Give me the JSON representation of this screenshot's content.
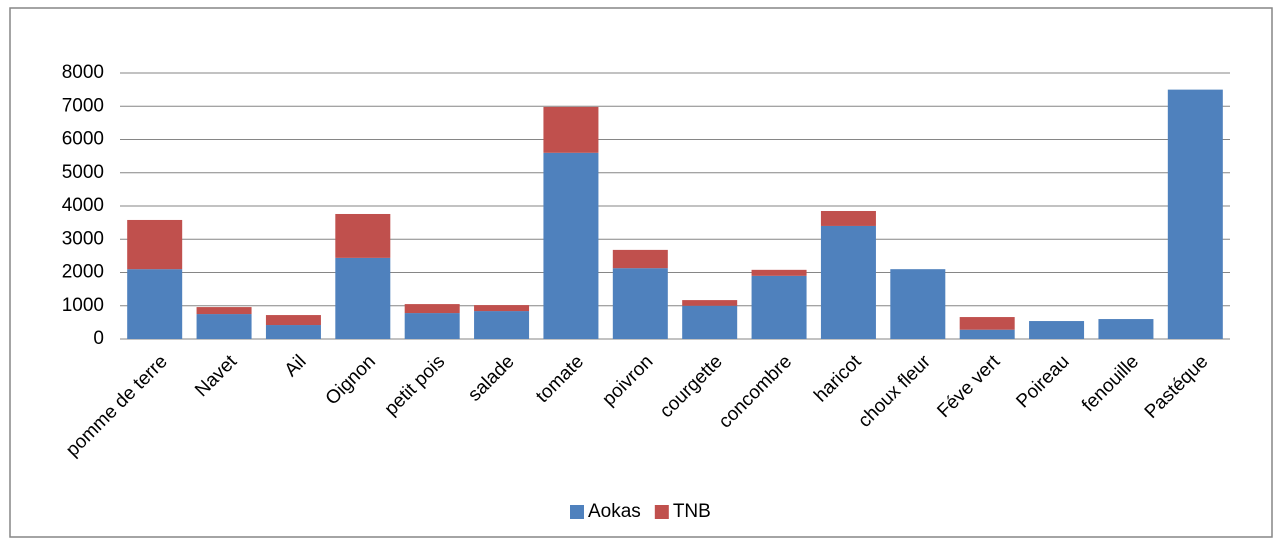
{
  "chart_data": {
    "type": "stacked_bar",
    "categories": [
      "pomme de terre",
      "Navet",
      "Ail",
      "Oignon",
      "petit pois",
      "salade",
      "tomate",
      "poivron",
      "courgette",
      "concombre",
      "haricot",
      "choux fleur",
      "Féve vert",
      "Poireau",
      "fenouille",
      "Pastéque"
    ],
    "series": [
      {
        "name": "Aokas",
        "color": "#4f81bd",
        "values": [
          2100,
          750,
          420,
          2440,
          780,
          840,
          5600,
          2130,
          1000,
          1900,
          3400,
          2100,
          280,
          540,
          600,
          7500
        ]
      },
      {
        "name": "TNB",
        "color": "#c0504d",
        "values": [
          1480,
          210,
          300,
          1320,
          270,
          180,
          1380,
          550,
          170,
          180,
          450,
          0,
          380,
          0,
          0,
          0
        ]
      }
    ],
    "ylim": [
      0,
      8000
    ],
    "yticks": [
      0,
      1000,
      2000,
      3000,
      4000,
      5000,
      6000,
      7000,
      8000
    ],
    "grid": true,
    "legend": "bottom"
  }
}
